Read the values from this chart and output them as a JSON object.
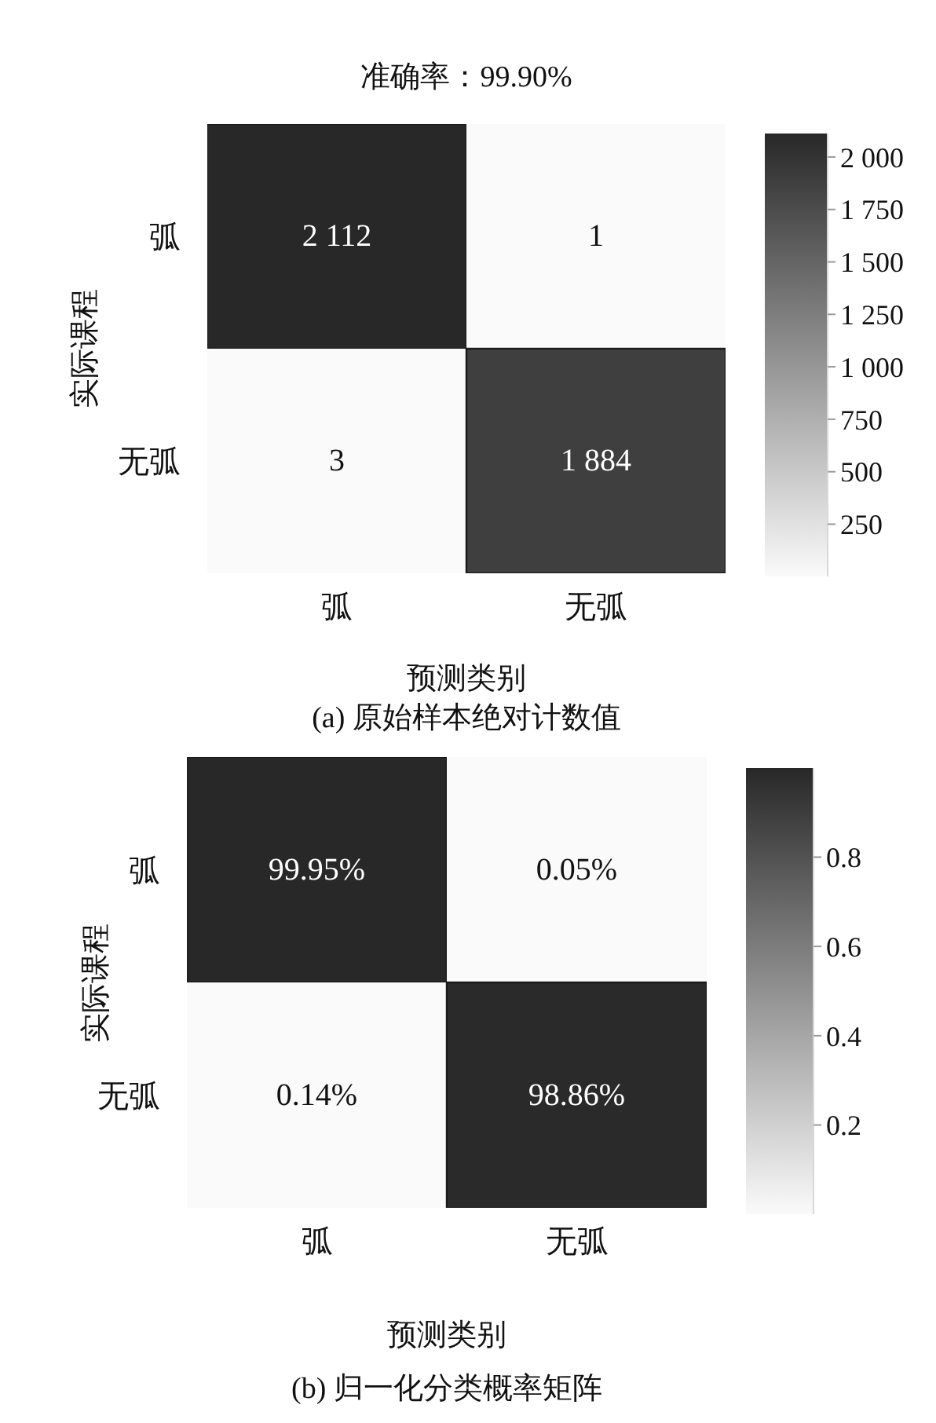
{
  "chart_data": [
    {
      "type": "heatmap",
      "title": "准确率：99.90%",
      "categories": [
        "弧",
        "无弧"
      ],
      "y_categories": [
        "弧",
        "无弧"
      ],
      "cells": [
        [
          2112,
          1
        ],
        [
          3,
          1884
        ]
      ],
      "cell_labels": [
        [
          "2 112",
          "1"
        ],
        [
          "3",
          "1 884"
        ]
      ],
      "xlabel": "预测类别",
      "ylabel": "实际课程",
      "clim": [
        1,
        2112
      ],
      "cticks": [
        250,
        500,
        750,
        {
          "value": 1000,
          "label": "1 000"
        },
        {
          "value": 1250,
          "label": "1 250"
        },
        {
          "value": 1500,
          "label": "1 500"
        },
        {
          "value": 1750,
          "label": "1 750"
        },
        {
          "value": 2000,
          "label": "2 000"
        }
      ],
      "annotations": [
        "(a) 原始样本绝对计数值"
      ]
    },
    {
      "type": "heatmap",
      "categories": [
        "弧",
        "无弧"
      ],
      "y_categories": [
        "弧",
        "无弧"
      ],
      "cells": [
        [
          0.9995,
          0.0005
        ],
        [
          0.0014,
          0.9886
        ]
      ],
      "cell_labels": [
        [
          "99.95%",
          "0.05%"
        ],
        [
          "0.14%",
          "98.86%"
        ]
      ],
      "xlabel": "预测类别",
      "ylabel": "实际课程",
      "clim": [
        0.0005,
        0.9995
      ],
      "cticks": [
        0.2,
        0.4,
        0.6,
        0.8
      ],
      "annotations": [
        "(b) 归一化分类概率矩阵"
      ]
    }
  ]
}
